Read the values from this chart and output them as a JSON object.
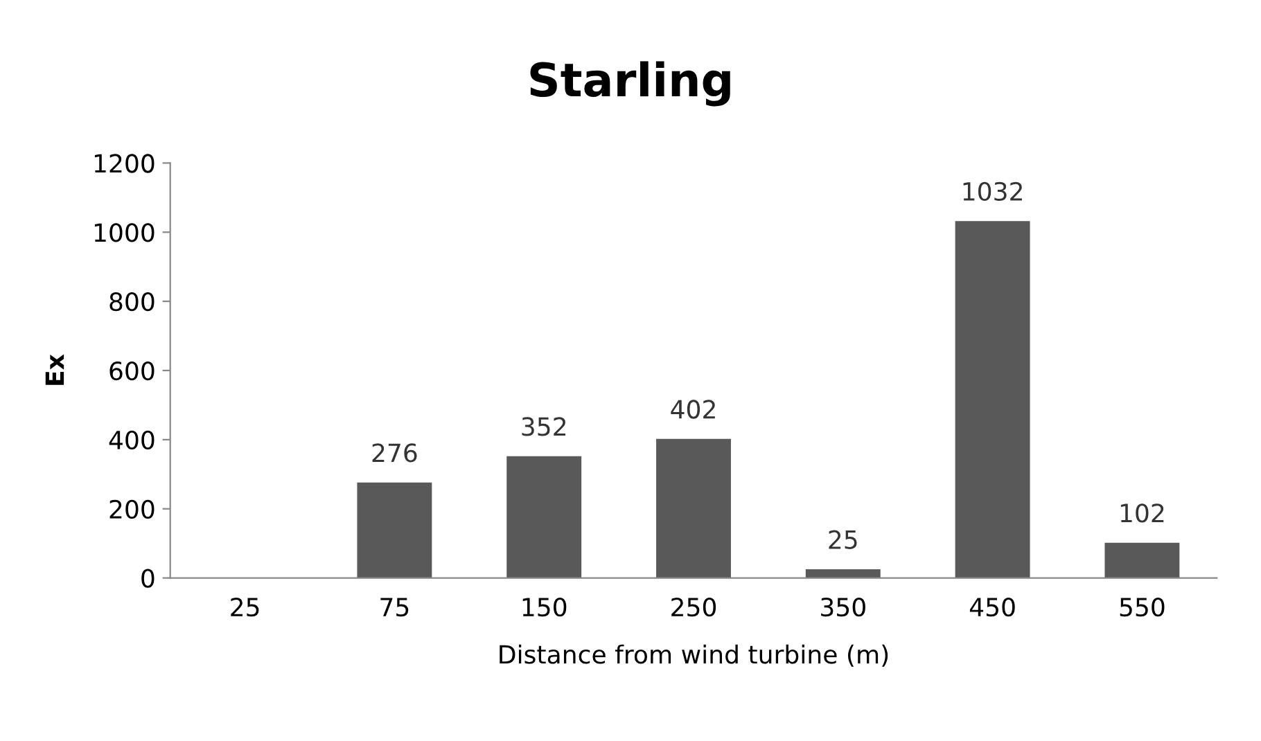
{
  "chart_data": {
    "type": "bar",
    "title": "Starling",
    "xlabel": "Distance from wind turbine (m)",
    "ylabel": "Ex",
    "categories": [
      "25",
      "75",
      "150",
      "250",
      "350",
      "450",
      "550"
    ],
    "values": [
      null,
      276,
      352,
      402,
      25,
      1032,
      102
    ],
    "color": "#595959",
    "ylim": [
      0,
      1200
    ],
    "yticks": [
      0,
      200,
      400,
      600,
      800,
      1000,
      1200
    ],
    "grid": false,
    "data_labels": true
  }
}
